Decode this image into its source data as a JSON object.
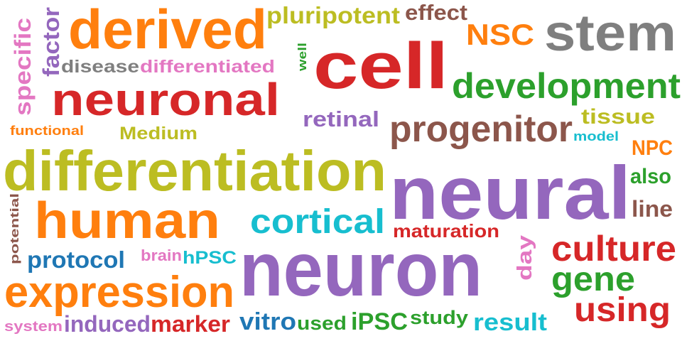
{
  "colors": {
    "orange": "#ff7f0e",
    "olive": "#bcbd22",
    "brown": "#8c564b",
    "red": "#d62728",
    "gray": "#7f7f7f",
    "green": "#2ca02c",
    "purple": "#9467bd",
    "pink": "#e377c2",
    "cyan": "#17becf",
    "blue": "#1f77b4"
  },
  "words": [
    {
      "text": "neural",
      "color": "purple"
    },
    {
      "text": "neuron",
      "color": "purple"
    },
    {
      "text": "cell",
      "color": "red"
    },
    {
      "text": "differentiation",
      "color": "olive"
    },
    {
      "text": "derived",
      "color": "orange"
    },
    {
      "text": "neuronal",
      "color": "red"
    },
    {
      "text": "human",
      "color": "orange"
    },
    {
      "text": "stem",
      "color": "gray"
    },
    {
      "text": "expression",
      "color": "orange"
    },
    {
      "text": "development",
      "color": "green"
    },
    {
      "text": "progenitor",
      "color": "brown"
    },
    {
      "text": "cortical",
      "color": "cyan"
    },
    {
      "text": "culture",
      "color": "red"
    },
    {
      "text": "gene",
      "color": "green"
    },
    {
      "text": "using",
      "color": "red"
    },
    {
      "text": "NSC",
      "color": "orange"
    },
    {
      "text": "pluripotent",
      "color": "olive"
    },
    {
      "text": "effect",
      "color": "brown"
    },
    {
      "text": "tissue",
      "color": "olive"
    },
    {
      "text": "retinal",
      "color": "purple"
    },
    {
      "text": "protocol",
      "color": "blue"
    },
    {
      "text": "marker",
      "color": "red"
    },
    {
      "text": "induced",
      "color": "purple"
    },
    {
      "text": "vitro",
      "color": "blue"
    },
    {
      "text": "iPSC",
      "color": "green"
    },
    {
      "text": "result",
      "color": "cyan"
    },
    {
      "text": "maturation",
      "color": "red"
    },
    {
      "text": "line",
      "color": "brown"
    },
    {
      "text": "also",
      "color": "green"
    },
    {
      "text": "NPC",
      "color": "orange"
    },
    {
      "text": "study",
      "color": "green"
    },
    {
      "text": "used",
      "color": "green"
    },
    {
      "text": "disease",
      "color": "gray"
    },
    {
      "text": "differentiated",
      "color": "pink"
    },
    {
      "text": "specific",
      "color": "pink"
    },
    {
      "text": "factor",
      "color": "purple"
    },
    {
      "text": "hPSC",
      "color": "cyan"
    },
    {
      "text": "Medium",
      "color": "olive"
    },
    {
      "text": "day",
      "color": "pink"
    },
    {
      "text": "brain",
      "color": "pink"
    },
    {
      "text": "functional",
      "color": "orange"
    },
    {
      "text": "well",
      "color": "green"
    },
    {
      "text": "model",
      "color": "cyan"
    },
    {
      "text": "potential",
      "color": "brown"
    },
    {
      "text": "system",
      "color": "pink"
    }
  ]
}
